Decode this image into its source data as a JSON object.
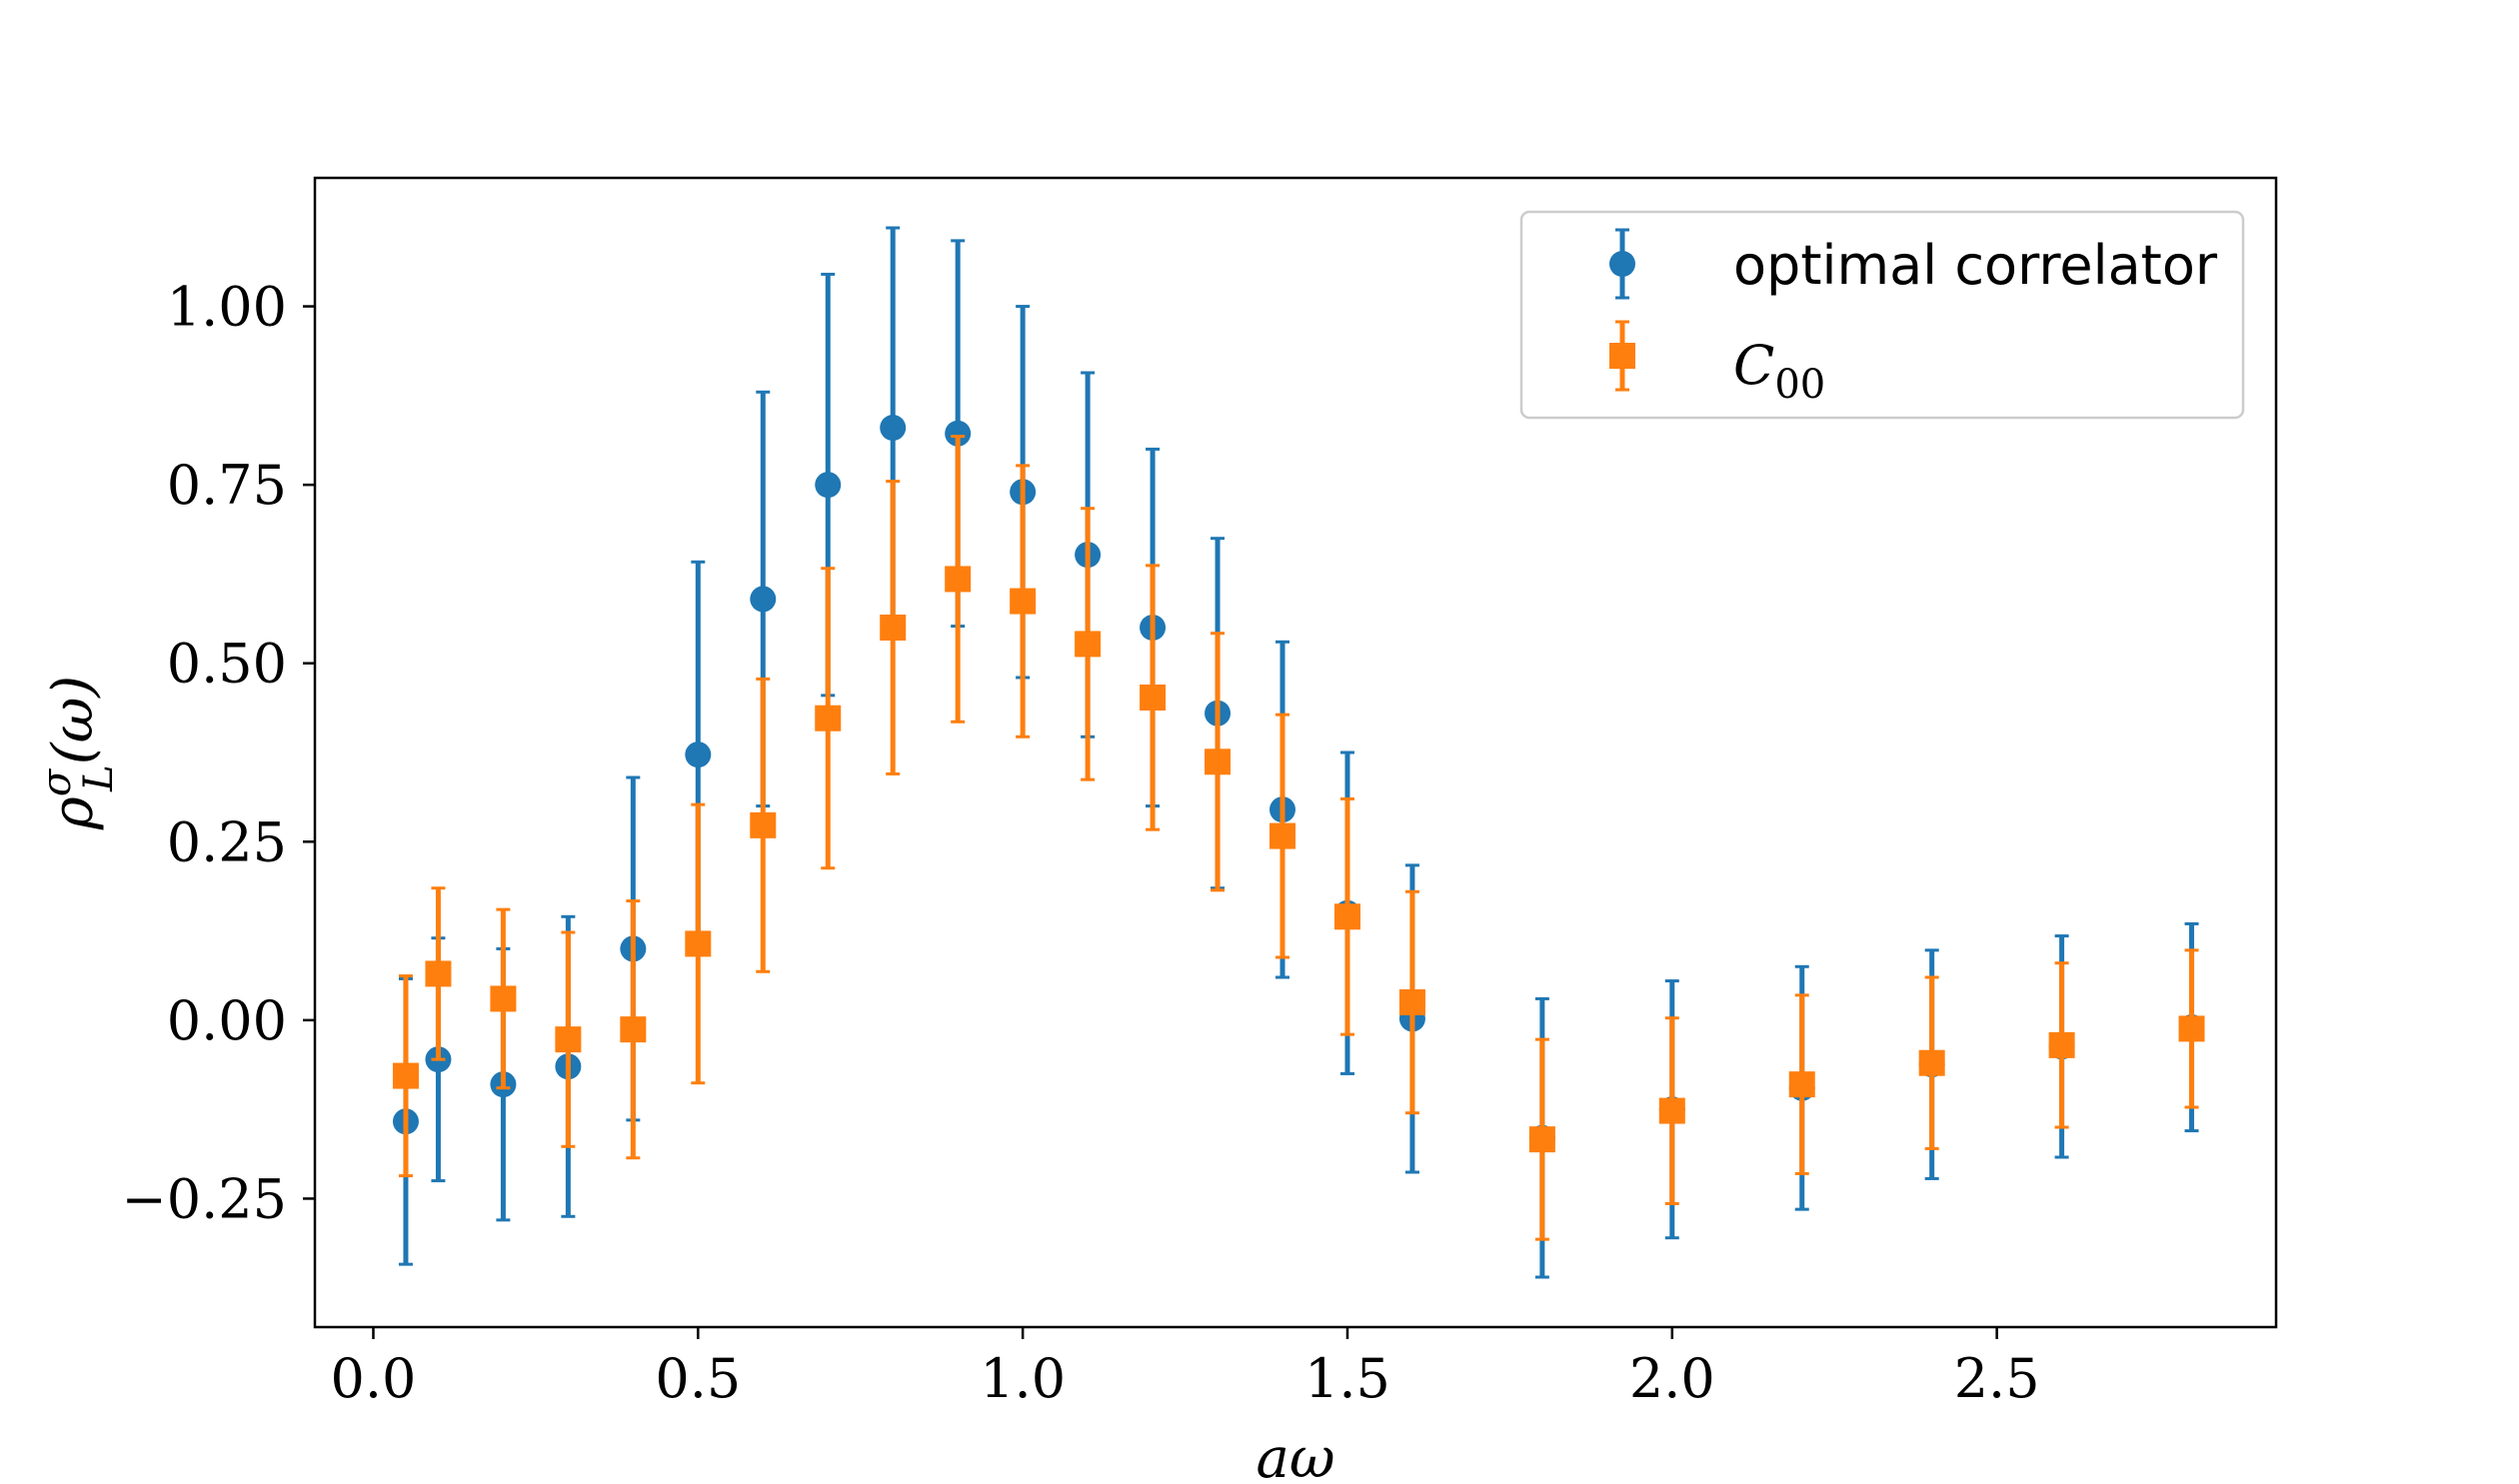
{
  "chart_data": {
    "type": "scatter",
    "title": "",
    "xlabel": "aω",
    "ylabel": "ρ",
    "ylabel_sup": "σ",
    "ylabel_sub": "L",
    "ylabel_suffix": "(ω)",
    "xlim": [
      -0.09,
      2.93
    ],
    "ylim": [
      -0.43,
      1.18
    ],
    "xticks": [
      0.0,
      0.5,
      1.0,
      1.5,
      2.0,
      2.5
    ],
    "xtick_labels": [
      "0.0",
      "0.5",
      "1.0",
      "1.5",
      "2.0",
      "2.5"
    ],
    "yticks": [
      -0.25,
      0.0,
      0.25,
      0.5,
      0.75,
      1.0
    ],
    "ytick_labels": [
      "−0.25",
      "0.00",
      "0.25",
      "0.50",
      "0.75",
      "1.00"
    ],
    "grid": false,
    "legend_position": "upper right",
    "series": [
      {
        "name": "optimal correlator",
        "color": "#1f77b4",
        "marker": "circle",
        "x": [
          0.05,
          0.1,
          0.2,
          0.3,
          0.4,
          0.5,
          0.6,
          0.7,
          0.8,
          0.9,
          1.0,
          1.1,
          1.2,
          1.3,
          1.4,
          1.5,
          1.6,
          1.8,
          2.0,
          2.2,
          2.4,
          2.6,
          2.8
        ],
        "y": [
          -0.142,
          -0.055,
          -0.09,
          -0.065,
          0.1,
          0.372,
          0.59,
          0.75,
          0.83,
          0.822,
          0.74,
          0.652,
          0.55,
          0.43,
          0.295,
          0.15,
          0.002,
          -0.165,
          -0.125,
          -0.095,
          -0.062,
          -0.037,
          -0.01
        ],
        "err": [
          0.2,
          0.17,
          0.19,
          0.21,
          0.24,
          0.27,
          0.29,
          0.295,
          0.28,
          0.27,
          0.26,
          0.255,
          0.25,
          0.245,
          0.235,
          0.225,
          0.215,
          0.195,
          0.18,
          0.17,
          0.16,
          0.155,
          0.145
        ]
      },
      {
        "name": "C",
        "name_sub": "00",
        "color": "#ff7f0e",
        "marker": "square",
        "x": [
          0.05,
          0.1,
          0.2,
          0.3,
          0.4,
          0.5,
          0.6,
          0.7,
          0.8,
          0.9,
          1.0,
          1.1,
          1.2,
          1.3,
          1.4,
          1.5,
          1.6,
          1.8,
          2.0,
          2.2,
          2.4,
          2.6,
          2.8
        ],
        "y": [
          -0.078,
          0.065,
          0.03,
          -0.027,
          -0.013,
          0.107,
          0.273,
          0.423,
          0.55,
          0.618,
          0.587,
          0.527,
          0.452,
          0.362,
          0.258,
          0.145,
          0.025,
          -0.167,
          -0.127,
          -0.09,
          -0.06,
          -0.035,
          -0.012
        ],
        "err": [
          0.14,
          0.12,
          0.125,
          0.15,
          0.18,
          0.195,
          0.205,
          0.21,
          0.205,
          0.2,
          0.19,
          0.19,
          0.185,
          0.18,
          0.17,
          0.165,
          0.155,
          0.14,
          0.13,
          0.125,
          0.12,
          0.115,
          0.11
        ]
      }
    ]
  }
}
